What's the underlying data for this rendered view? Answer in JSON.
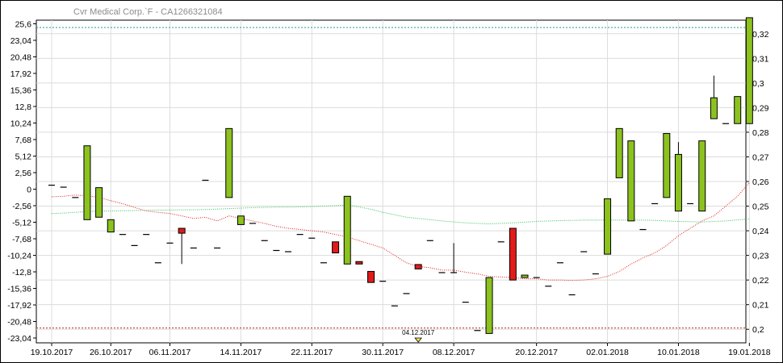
{
  "window": {
    "title": "Cvr Medical Corp.`F - CA1266321084"
  },
  "colors": {
    "up": "#8cc21e",
    "down": "#e21a1a",
    "ma_fast": "#e02020",
    "ma_slow": "#2fbf5f",
    "grid": "#dcdcdc",
    "upper_band": "#1e9f8f",
    "lower_band": "#c02828"
  },
  "chart_data": {
    "type": "candlestick",
    "title": "Cvr Medical Corp.`F - CA1266321084",
    "left_axis": {
      "ticks": [
        "25,6",
        "23,04",
        "20,48",
        "17,92",
        "15,36",
        "12,8",
        "10,24",
        "7,68",
        "5,12",
        "2,56",
        "0",
        "-2,56",
        "-5,12",
        "-7,68",
        "-10,24",
        "-12,8",
        "-15,36",
        "-17,92",
        "-20,48",
        "-23,04"
      ],
      "tick_values": [
        25.6,
        23.04,
        20.48,
        17.92,
        15.36,
        12.8,
        10.24,
        7.68,
        5.12,
        2.56,
        0,
        -2.56,
        -5.12,
        -7.68,
        -10.24,
        -12.8,
        -15.36,
        -17.92,
        -20.48,
        -23.04
      ]
    },
    "right_axis": {
      "ticks": [
        "0,32",
        "0,31",
        "0,3",
        "0,29",
        "0,28",
        "0,27",
        "0,26",
        "0,25",
        "0,24",
        "0,23",
        "0,22",
        "0,21",
        "0,2"
      ],
      "tick_values": [
        0.32,
        0.31,
        0.3,
        0.29,
        0.28,
        0.27,
        0.26,
        0.25,
        0.24,
        0.23,
        0.22,
        0.21,
        0.2
      ],
      "range": [
        0.1945,
        0.3255
      ]
    },
    "x_axis": {
      "labels": [
        "19.10.2017",
        "26.10.2017",
        "06.11.2017",
        "14.11.2017",
        "22.11.2017",
        "30.11.2017",
        "08.12.2017",
        "20.12.2017",
        "02.01.2018",
        "10.01.2018",
        "19.01.2018"
      ],
      "label_index": [
        0,
        5,
        10,
        16,
        22,
        28,
        34,
        41,
        47,
        53,
        59
      ]
    },
    "reference_lines": [
      {
        "name": "upper",
        "value": 0.3225
      },
      {
        "name": "lower",
        "value": 0.2005
      }
    ],
    "marker": {
      "label": "04.12.2017",
      "index": 31
    },
    "candles": [
      {
        "o": 0.2585,
        "h": 0.2585,
        "l": 0.2585,
        "c": 0.2585
      },
      {
        "o": 0.2577,
        "h": 0.2577,
        "l": 0.2577,
        "c": 0.2577
      },
      {
        "o": 0.2535,
        "h": 0.2535,
        "l": 0.2535,
        "c": 0.2535
      },
      {
        "o": 0.2445,
        "h": 0.2745,
        "l": 0.2445,
        "c": 0.2745
      },
      {
        "o": 0.2455,
        "h": 0.2575,
        "l": 0.2455,
        "c": 0.2575
      },
      {
        "o": 0.2395,
        "h": 0.2445,
        "l": 0.2395,
        "c": 0.2445
      },
      {
        "o": 0.2385,
        "h": 0.2385,
        "l": 0.2385,
        "c": 0.2385
      },
      {
        "o": 0.234,
        "h": 0.234,
        "l": 0.234,
        "c": 0.234
      },
      {
        "o": 0.2385,
        "h": 0.2385,
        "l": 0.2385,
        "c": 0.2385
      },
      {
        "o": 0.227,
        "h": 0.227,
        "l": 0.227,
        "c": 0.227
      },
      {
        "o": 0.235,
        "h": 0.235,
        "l": 0.235,
        "c": 0.235
      },
      {
        "o": 0.241,
        "h": 0.241,
        "l": 0.2265,
        "c": 0.239
      },
      {
        "o": 0.233,
        "h": 0.233,
        "l": 0.233,
        "c": 0.233
      },
      {
        "o": 0.2605,
        "h": 0.2605,
        "l": 0.2605,
        "c": 0.2605
      },
      {
        "o": 0.233,
        "h": 0.233,
        "l": 0.233,
        "c": 0.233
      },
      {
        "o": 0.2535,
        "h": 0.2815,
        "l": 0.2535,
        "c": 0.2815
      },
      {
        "o": 0.2425,
        "h": 0.246,
        "l": 0.2425,
        "c": 0.246
      },
      {
        "o": 0.243,
        "h": 0.243,
        "l": 0.243,
        "c": 0.243
      },
      {
        "o": 0.236,
        "h": 0.236,
        "l": 0.236,
        "c": 0.236
      },
      {
        "o": 0.232,
        "h": 0.232,
        "l": 0.232,
        "c": 0.232
      },
      {
        "o": 0.2315,
        "h": 0.2315,
        "l": 0.2315,
        "c": 0.2315
      },
      {
        "o": 0.2385,
        "h": 0.2385,
        "l": 0.2385,
        "c": 0.2385
      },
      {
        "o": 0.237,
        "h": 0.237,
        "l": 0.237,
        "c": 0.237
      },
      {
        "o": 0.227,
        "h": 0.227,
        "l": 0.227,
        "c": 0.227
      },
      {
        "o": 0.2355,
        "h": 0.2355,
        "l": 0.231,
        "c": 0.231
      },
      {
        "o": 0.2265,
        "h": 0.254,
        "l": 0.2265,
        "c": 0.254
      },
      {
        "o": 0.2275,
        "h": 0.2275,
        "l": 0.2265,
        "c": 0.2265
      },
      {
        "o": 0.2235,
        "h": 0.2235,
        "l": 0.219,
        "c": 0.219
      },
      {
        "o": 0.2195,
        "h": 0.2195,
        "l": 0.2195,
        "c": 0.2195
      },
      {
        "o": 0.2095,
        "h": 0.2095,
        "l": 0.2095,
        "c": 0.2095
      },
      {
        "o": 0.2145,
        "h": 0.2145,
        "l": 0.2145,
        "c": 0.2145
      },
      {
        "o": 0.2263,
        "h": 0.2263,
        "l": 0.2245,
        "c": 0.2245
      },
      {
        "o": 0.236,
        "h": 0.236,
        "l": 0.236,
        "c": 0.236
      },
      {
        "o": 0.223,
        "h": 0.223,
        "l": 0.223,
        "c": 0.223
      },
      {
        "o": 0.223,
        "h": 0.235,
        "l": 0.223,
        "c": 0.223
      },
      {
        "o": 0.211,
        "h": 0.211,
        "l": 0.211,
        "c": 0.211
      },
      {
        "o": 0.1995,
        "h": 0.1995,
        "l": 0.1995,
        "c": 0.1995
      },
      {
        "o": 0.1983,
        "h": 0.221,
        "l": 0.1983,
        "c": 0.221
      },
      {
        "o": 0.2355,
        "h": 0.2355,
        "l": 0.2355,
        "c": 0.2355
      },
      {
        "o": 0.241,
        "h": 0.241,
        "l": 0.22,
        "c": 0.22
      },
      {
        "o": 0.221,
        "h": 0.222,
        "l": 0.221,
        "c": 0.222
      },
      {
        "o": 0.221,
        "h": 0.221,
        "l": 0.221,
        "c": 0.221
      },
      {
        "o": 0.2175,
        "h": 0.2175,
        "l": 0.2175,
        "c": 0.2175
      },
      {
        "o": 0.227,
        "h": 0.227,
        "l": 0.227,
        "c": 0.227
      },
      {
        "o": 0.214,
        "h": 0.214,
        "l": 0.214,
        "c": 0.214
      },
      {
        "o": 0.2315,
        "h": 0.2315,
        "l": 0.2315,
        "c": 0.2315
      },
      {
        "o": 0.2225,
        "h": 0.2225,
        "l": 0.2225,
        "c": 0.2225
      },
      {
        "o": 0.2305,
        "h": 0.253,
        "l": 0.2305,
        "c": 0.253
      },
      {
        "o": 0.2615,
        "h": 0.2815,
        "l": 0.2615,
        "c": 0.2815
      },
      {
        "o": 0.244,
        "h": 0.2765,
        "l": 0.244,
        "c": 0.2765
      },
      {
        "o": 0.2405,
        "h": 0.2405,
        "l": 0.2405,
        "c": 0.2405
      },
      {
        "o": 0.251,
        "h": 0.251,
        "l": 0.251,
        "c": 0.251
      },
      {
        "o": 0.2535,
        "h": 0.2795,
        "l": 0.2535,
        "c": 0.2795
      },
      {
        "o": 0.248,
        "h": 0.276,
        "l": 0.248,
        "c": 0.271
      },
      {
        "o": 0.251,
        "h": 0.251,
        "l": 0.251,
        "c": 0.251
      },
      {
        "o": 0.248,
        "h": 0.2765,
        "l": 0.248,
        "c": 0.2765
      },
      {
        "o": 0.2855,
        "h": 0.303,
        "l": 0.2855,
        "c": 0.294
      },
      {
        "o": 0.2835,
        "h": 0.2835,
        "l": 0.2835,
        "c": 0.2835
      },
      {
        "o": 0.2835,
        "h": 0.2945,
        "l": 0.2835,
        "c": 0.2945
      },
      {
        "o": 0.2835,
        "h": 0.3265,
        "l": 0.2835,
        "c": 0.3265
      }
    ],
    "ma_fast": [
      0.2538,
      0.254,
      0.2545,
      0.2542,
      0.2535,
      0.2522,
      0.251,
      0.2495,
      0.248,
      0.2475,
      0.247,
      0.246,
      0.245,
      0.2455,
      0.244,
      0.246,
      0.245,
      0.244,
      0.243,
      0.2418,
      0.241,
      0.2405,
      0.24,
      0.2395,
      0.2385,
      0.2375,
      0.236,
      0.2345,
      0.233,
      0.23,
      0.227,
      0.2255,
      0.225,
      0.224,
      0.224,
      0.2232,
      0.2225,
      0.2215,
      0.2212,
      0.221,
      0.2205,
      0.2205,
      0.22,
      0.22,
      0.2198,
      0.22,
      0.2205,
      0.2215,
      0.2235,
      0.2265,
      0.229,
      0.231,
      0.234,
      0.238,
      0.241,
      0.244,
      0.246,
      0.25,
      0.254,
      0.2595
    ],
    "ma_slow": [
      0.247,
      0.2472,
      0.2475,
      0.2478,
      0.248,
      0.248,
      0.2481,
      0.2482,
      0.2483,
      0.2484,
      0.2484,
      0.2485,
      0.2485,
      0.2486,
      0.2488,
      0.249,
      0.2492,
      0.2494,
      0.2495,
      0.2496,
      0.2496,
      0.2497,
      0.2498,
      0.25,
      0.2502,
      0.2505,
      0.2497,
      0.2487,
      0.2475,
      0.2465,
      0.2455,
      0.245,
      0.2445,
      0.244,
      0.2436,
      0.2432,
      0.243,
      0.2428,
      0.243,
      0.2432,
      0.2435,
      0.2438,
      0.244,
      0.2441,
      0.2442,
      0.2443,
      0.2443,
      0.2443,
      0.2443,
      0.2443,
      0.2443,
      0.2442,
      0.244,
      0.2438,
      0.2437,
      0.2436,
      0.2438,
      0.244,
      0.2444,
      0.2448
    ]
  }
}
